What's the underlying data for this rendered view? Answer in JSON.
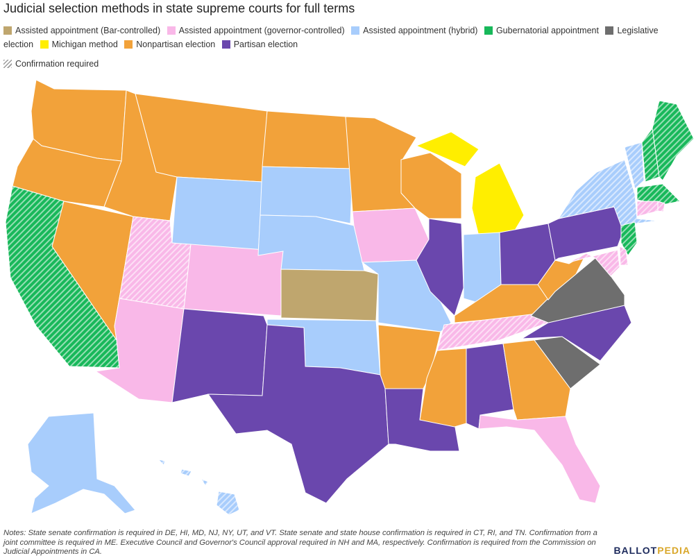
{
  "title": "Judicial selection methods in state supreme courts for full terms",
  "legend": {
    "items": [
      {
        "label": "Assisted appointment (Bar-controlled)",
        "color": "#bfa66e"
      },
      {
        "label": "Assisted appointment (governor-controlled)",
        "color": "#f9b8e8"
      },
      {
        "label": "Assisted appointment (hybrid)",
        "color": "#a8cdfc"
      },
      {
        "label": "Gubernatorial appointment",
        "color": "#18b85a"
      },
      {
        "label": "Legislative election",
        "color": "#6e6e6e"
      },
      {
        "label": "Michigan method",
        "color": "#ffee00"
      },
      {
        "label": "Nonpartisan election",
        "color": "#f2a23a"
      },
      {
        "label": "Partisan election",
        "color": "#6a47ad"
      }
    ],
    "hatch_label": "Confirmation required"
  },
  "notes": "Notes: State senate confirmation is required in DE, HI, MD, NJ, NY, UT, and VT. State senate and state house confirmation is required in CT, RI, and TN. Confirmation from a joint committee is required in ME. Executive Council and Governor's Council approval required in NH and MA, respectively. Confirmation is required from the Commission on Judicial Appointments in CA.",
  "brand": {
    "main": "BALLOT",
    "accent": "PEDIA"
  },
  "map_colors": {
    "bar": "#bfa66e",
    "gov": "#f9b8e8",
    "hybrid": "#a8cdfc",
    "gubernatorial": "#18b85a",
    "legislative": "#6e6e6e",
    "michigan": "#ffee00",
    "nonpartisan": "#f2a23a",
    "partisan": "#6a47ad"
  },
  "states": [
    {
      "id": "WA",
      "method": "nonpartisan",
      "confirmation": false
    },
    {
      "id": "OR",
      "method": "nonpartisan",
      "confirmation": false
    },
    {
      "id": "CA",
      "method": "gubernatorial",
      "confirmation": true
    },
    {
      "id": "NV",
      "method": "nonpartisan",
      "confirmation": false
    },
    {
      "id": "ID",
      "method": "nonpartisan",
      "confirmation": false
    },
    {
      "id": "MT",
      "method": "nonpartisan",
      "confirmation": false
    },
    {
      "id": "WY",
      "method": "hybrid",
      "confirmation": false
    },
    {
      "id": "UT",
      "method": "gov",
      "confirmation": true
    },
    {
      "id": "AZ",
      "method": "gov",
      "confirmation": false
    },
    {
      "id": "CO",
      "method": "gov",
      "confirmation": false
    },
    {
      "id": "NM",
      "method": "partisan",
      "confirmation": false
    },
    {
      "id": "ND",
      "method": "nonpartisan",
      "confirmation": false
    },
    {
      "id": "SD",
      "method": "hybrid",
      "confirmation": false
    },
    {
      "id": "NE",
      "method": "hybrid",
      "confirmation": false
    },
    {
      "id": "KS",
      "method": "bar",
      "confirmation": false
    },
    {
      "id": "OK",
      "method": "hybrid",
      "confirmation": false
    },
    {
      "id": "TX",
      "method": "partisan",
      "confirmation": false
    },
    {
      "id": "MN",
      "method": "nonpartisan",
      "confirmation": false
    },
    {
      "id": "IA",
      "method": "gov",
      "confirmation": false
    },
    {
      "id": "MO",
      "method": "hybrid",
      "confirmation": false
    },
    {
      "id": "AR",
      "method": "nonpartisan",
      "confirmation": false
    },
    {
      "id": "LA",
      "method": "partisan",
      "confirmation": false
    },
    {
      "id": "WI",
      "method": "nonpartisan",
      "confirmation": false
    },
    {
      "id": "IL",
      "method": "partisan",
      "confirmation": false
    },
    {
      "id": "MI",
      "method": "michigan",
      "confirmation": false
    },
    {
      "id": "IN",
      "method": "hybrid",
      "confirmation": false
    },
    {
      "id": "OH",
      "method": "partisan",
      "confirmation": false
    },
    {
      "id": "KY",
      "method": "nonpartisan",
      "confirmation": false
    },
    {
      "id": "TN",
      "method": "gov",
      "confirmation": true
    },
    {
      "id": "MS",
      "method": "nonpartisan",
      "confirmation": false
    },
    {
      "id": "AL",
      "method": "partisan",
      "confirmation": false
    },
    {
      "id": "GA",
      "method": "nonpartisan",
      "confirmation": false
    },
    {
      "id": "FL",
      "method": "gov",
      "confirmation": false
    },
    {
      "id": "SC",
      "method": "legislative",
      "confirmation": false
    },
    {
      "id": "NC",
      "method": "partisan",
      "confirmation": false
    },
    {
      "id": "VA",
      "method": "legislative",
      "confirmation": false
    },
    {
      "id": "WV",
      "method": "nonpartisan",
      "confirmation": false
    },
    {
      "id": "PA",
      "method": "partisan",
      "confirmation": false
    },
    {
      "id": "NY",
      "method": "hybrid",
      "confirmation": true
    },
    {
      "id": "VT",
      "method": "hybrid",
      "confirmation": true
    },
    {
      "id": "NH",
      "method": "gubernatorial",
      "confirmation": true
    },
    {
      "id": "ME",
      "method": "gubernatorial",
      "confirmation": true
    },
    {
      "id": "MA",
      "method": "gubernatorial",
      "confirmation": true
    },
    {
      "id": "RI",
      "method": "gov",
      "confirmation": true
    },
    {
      "id": "CT",
      "method": "gov",
      "confirmation": true
    },
    {
      "id": "NJ",
      "method": "gubernatorial",
      "confirmation": true
    },
    {
      "id": "DE",
      "method": "gov",
      "confirmation": true
    },
    {
      "id": "MD",
      "method": "gov",
      "confirmation": true
    },
    {
      "id": "AK",
      "method": "hybrid",
      "confirmation": false
    },
    {
      "id": "HI",
      "method": "hybrid",
      "confirmation": true
    }
  ]
}
